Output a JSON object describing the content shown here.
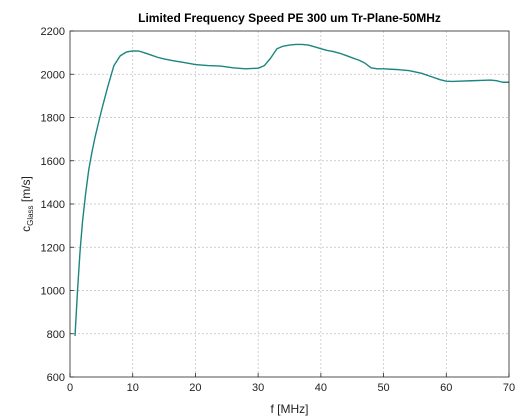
{
  "chart_data": {
    "type": "line",
    "title": "Limited Frequency Speed PE 300 um Tr-Plane-50MHz",
    "xlabel": "f [MHz]",
    "ylabel": {
      "main": "c",
      "subscript": "Glass",
      "unit": " [m/s]"
    },
    "xlim": [
      0,
      70
    ],
    "ylim": [
      600,
      2200
    ],
    "xticks": [
      0,
      10,
      20,
      30,
      40,
      50,
      60,
      70
    ],
    "yticks": [
      600,
      800,
      1000,
      1200,
      1400,
      1600,
      1800,
      2000,
      2200
    ],
    "grid": true,
    "series": [
      {
        "color": "#1b8580",
        "x": [
          0.8,
          1.2,
          1.6,
          2.0,
          2.5,
          3.0,
          3.5,
          4.0,
          5.0,
          6.0,
          7.0,
          8.0,
          9.0,
          10.0,
          11.0,
          12.0,
          13.0,
          14.0,
          15.0,
          16.0,
          17.0,
          18.0,
          19.0,
          20.0,
          22.0,
          24.0,
          26.0,
          28.0,
          30.0,
          31.0,
          32.0,
          33.0,
          34.0,
          35.0,
          36.0,
          37.0,
          38.0,
          39.0,
          40.0,
          41.0,
          42.0,
          43.0,
          44.0,
          45.0,
          46.0,
          47.0,
          48.0,
          49.0,
          50.0,
          52.0,
          54.0,
          56.0,
          58.0,
          59.0,
          60.0,
          61.0,
          62.0,
          64.0,
          66.0,
          67.0,
          68.0,
          69.0,
          70.0
        ],
        "y": [
          790,
          1000,
          1180,
          1320,
          1450,
          1560,
          1640,
          1710,
          1830,
          1940,
          2040,
          2085,
          2103,
          2108,
          2107,
          2098,
          2088,
          2078,
          2071,
          2065,
          2060,
          2055,
          2050,
          2045,
          2040,
          2038,
          2030,
          2025,
          2028,
          2040,
          2075,
          2118,
          2130,
          2135,
          2138,
          2138,
          2135,
          2127,
          2118,
          2110,
          2105,
          2097,
          2087,
          2076,
          2066,
          2052,
          2030,
          2025,
          2025,
          2022,
          2017,
          2005,
          1985,
          1975,
          1968,
          1967,
          1968,
          1970,
          1972,
          1973,
          1970,
          1963,
          1963
        ]
      }
    ]
  }
}
